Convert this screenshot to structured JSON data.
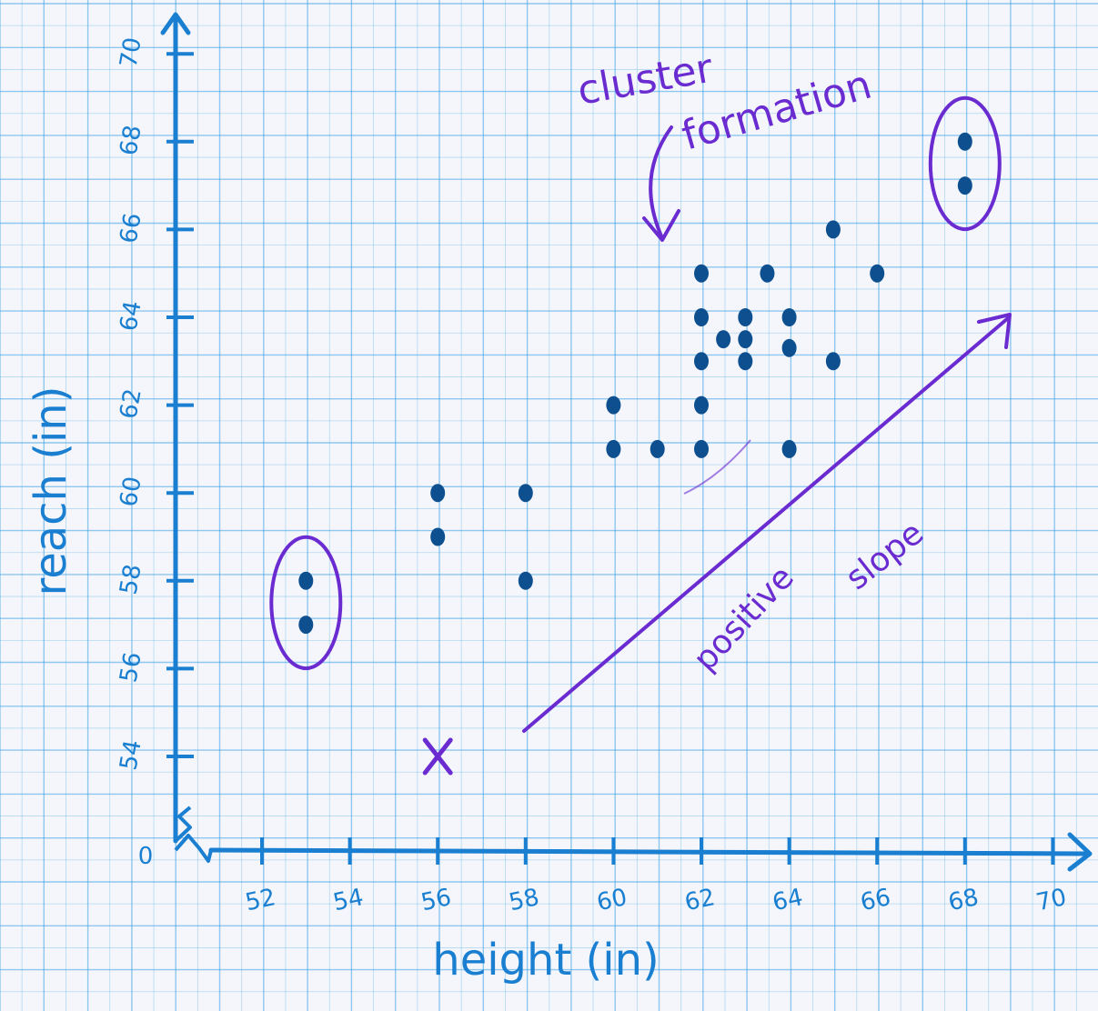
{
  "chart_data": {
    "type": "scatter",
    "xlabel": "height (in)",
    "ylabel": "reach (in)",
    "origin_label": "0",
    "x_ticks": [
      52,
      54,
      56,
      58,
      60,
      62,
      64,
      66,
      68,
      70
    ],
    "y_ticks": [
      54,
      56,
      58,
      60,
      62,
      64,
      66,
      68,
      70
    ],
    "xlim": [
      50,
      71
    ],
    "ylim": [
      52,
      72
    ],
    "axis_break": true,
    "grid": true,
    "points": [
      {
        "x": 53,
        "y": 58
      },
      {
        "x": 53,
        "y": 57
      },
      {
        "x": 56,
        "y": 60
      },
      {
        "x": 56,
        "y": 59
      },
      {
        "x": 58,
        "y": 60
      },
      {
        "x": 58,
        "y": 58
      },
      {
        "x": 60,
        "y": 62
      },
      {
        "x": 60,
        "y": 61
      },
      {
        "x": 61,
        "y": 61
      },
      {
        "x": 62,
        "y": 65
      },
      {
        "x": 62,
        "y": 64
      },
      {
        "x": 62,
        "y": 63
      },
      {
        "x": 62,
        "y": 62
      },
      {
        "x": 62,
        "y": 61
      },
      {
        "x": 62.5,
        "y": 63.5
      },
      {
        "x": 63,
        "y": 64
      },
      {
        "x": 63,
        "y": 63.5
      },
      {
        "x": 63,
        "y": 63
      },
      {
        "x": 63.5,
        "y": 65
      },
      {
        "x": 64,
        "y": 64
      },
      {
        "x": 64,
        "y": 63.3
      },
      {
        "x": 64,
        "y": 61
      },
      {
        "x": 65,
        "y": 66
      },
      {
        "x": 65,
        "y": 63
      },
      {
        "x": 66,
        "y": 65
      },
      {
        "x": 68,
        "y": 68
      },
      {
        "x": 68,
        "y": 67
      }
    ],
    "outlier_x_mark": {
      "x": 56,
      "y": 54
    },
    "annotations": {
      "cluster": [
        "cluster",
        "formation"
      ],
      "trend": [
        "positive",
        "slope"
      ]
    },
    "circled_groups": [
      {
        "points": [
          [
            53,
            58
          ],
          [
            53,
            57
          ]
        ]
      },
      {
        "points": [
          [
            68,
            68
          ],
          [
            68,
            67
          ]
        ]
      }
    ]
  },
  "colors": {
    "axis": "#1a7fd0",
    "points": "#0d4f8f",
    "annotation": "#6a2bd0",
    "grid_major": "#3aa0e6",
    "paper": "#f4f6fb"
  }
}
